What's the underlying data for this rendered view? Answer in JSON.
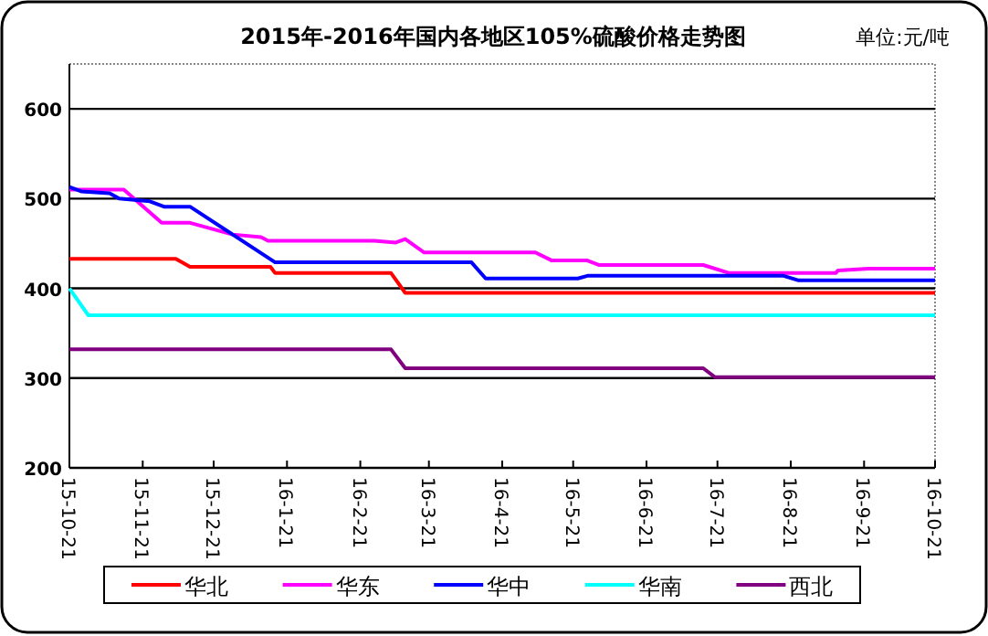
{
  "chart_data": {
    "type": "line",
    "title": "2015年-2016年国内各地区105%硫酸价格走势图",
    "annotations": [
      "单位:元/吨"
    ],
    "xlim": [
      "2015-10-21",
      "2016-10-21"
    ],
    "xticks": [
      {
        "value": "2015-10-21",
        "label": "15-10-21"
      },
      {
        "value": "2015-11-21",
        "label": "15-11-21"
      },
      {
        "value": "2015-12-21",
        "label": "15-12-21"
      },
      {
        "value": "2016-01-21",
        "label": "16-1-21"
      },
      {
        "value": "2016-02-21",
        "label": "16-2-21"
      },
      {
        "value": "2016-03-21",
        "label": "16-3-21"
      },
      {
        "value": "2016-04-21",
        "label": "16-4-21"
      },
      {
        "value": "2016-05-21",
        "label": "16-5-21"
      },
      {
        "value": "2016-06-21",
        "label": "16-6-21"
      },
      {
        "value": "2016-07-21",
        "label": "16-7-21"
      },
      {
        "value": "2016-08-21",
        "label": "16-8-21"
      },
      {
        "value": "2016-09-21",
        "label": "16-9-21"
      },
      {
        "value": "2016-10-21",
        "label": "16-10-21"
      }
    ],
    "ylim": [
      200,
      650
    ],
    "yticks": [
      200,
      300,
      400,
      500,
      600
    ],
    "grid": "y",
    "legend": "bottom",
    "marker": "none",
    "line_style": "solid",
    "series": [
      {
        "name": "华北",
        "color": "#ff0000",
        "x": [
          "2015-10-21",
          "2015-12-05",
          "2015-12-11",
          "2016-01-14",
          "2016-01-16",
          "2016-03-05",
          "2016-03-11",
          "2016-10-21"
        ],
        "values": [
          433,
          433,
          424,
          424,
          417,
          417,
          395,
          395
        ]
      },
      {
        "name": "华东",
        "color": "#ff00ff",
        "x": [
          "2015-10-21",
          "2015-11-13",
          "2015-11-29",
          "2015-12-11",
          "2015-12-29",
          "2016-01-10",
          "2016-01-13",
          "2016-02-27",
          "2016-03-07",
          "2016-03-11",
          "2016-03-19",
          "2016-05-05",
          "2016-05-12",
          "2016-05-27",
          "2016-06-01",
          "2016-07-15",
          "2016-07-26",
          "2016-09-09",
          "2016-09-10",
          "2016-09-23",
          "2016-10-21"
        ],
        "values": [
          510,
          510,
          473,
          473,
          460,
          457,
          453,
          453,
          451,
          455,
          440,
          440,
          431,
          431,
          426,
          426,
          417,
          417,
          420,
          422,
          422
        ]
      },
      {
        "name": "华中",
        "color": "#0000ff",
        "x": [
          "2015-10-21",
          "2015-10-26",
          "2015-11-07",
          "2015-11-11",
          "2015-11-24",
          "2015-11-30",
          "2015-12-11",
          "2016-01-16",
          "2016-04-08",
          "2016-04-14",
          "2016-05-23",
          "2016-05-27",
          "2016-08-18",
          "2016-08-24",
          "2016-10-21"
        ],
        "values": [
          513,
          508,
          506,
          500,
          497,
          491,
          491,
          429,
          429,
          411,
          411,
          414,
          414,
          409,
          409
        ]
      },
      {
        "name": "华南",
        "color": "#00ffff",
        "x": [
          "2015-10-21",
          "2015-10-29",
          "2016-10-21"
        ],
        "values": [
          400,
          370,
          370
        ]
      },
      {
        "name": "西北",
        "color": "#800080",
        "x": [
          "2015-10-21",
          "2016-03-05",
          "2016-03-11",
          "2016-07-15",
          "2016-07-20",
          "2016-10-21"
        ],
        "values": [
          332,
          332,
          311,
          311,
          301,
          301
        ]
      }
    ]
  }
}
